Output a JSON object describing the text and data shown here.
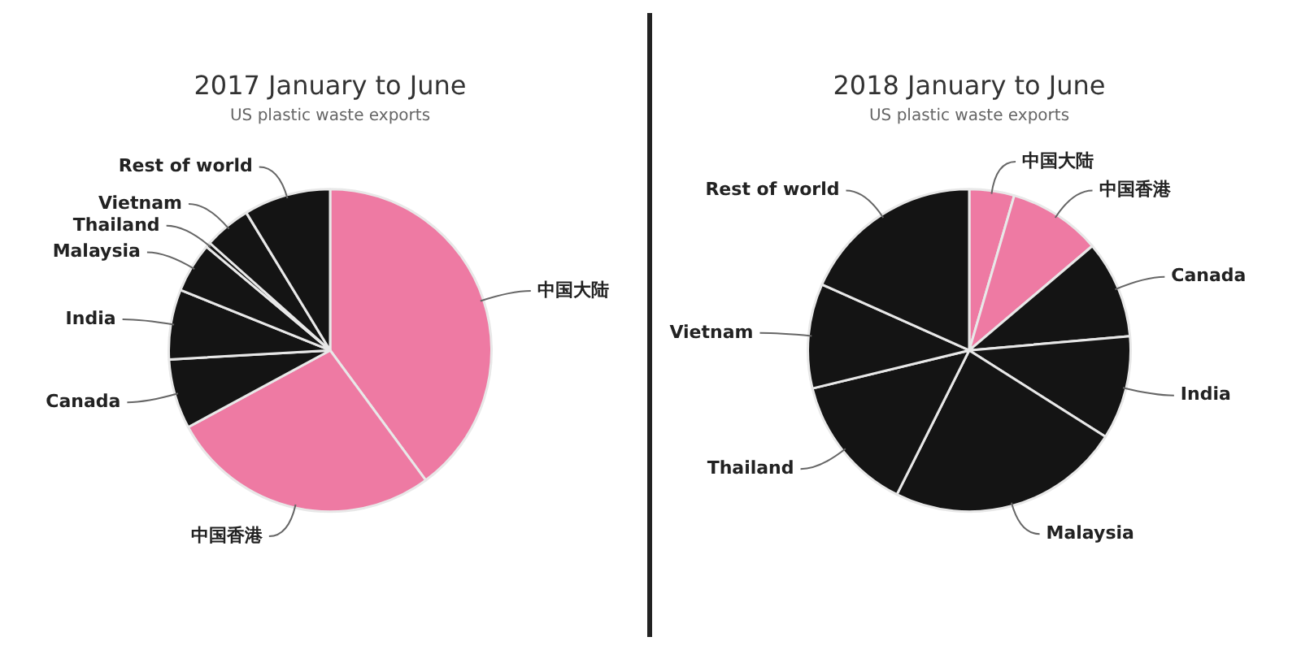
{
  "chart_data": [
    {
      "type": "pie",
      "title": "2017 January to June",
      "subtitle": "US plastic waste exports",
      "categories": [
        "中国大陆",
        "中国香港",
        "Canada",
        "India",
        "Malaysia",
        "Thailand",
        "Vietnam",
        "Rest of world"
      ],
      "values": [
        39.9,
        27.2,
        7.0,
        7.0,
        5.0,
        0.5,
        4.7,
        8.7
      ],
      "colors": [
        "#ee7aa3",
        "#ee7aa3",
        "#141414",
        "#141414",
        "#141414",
        "#141414",
        "#141414",
        "#141414"
      ]
    },
    {
      "type": "pie",
      "title": "2018 January to June",
      "subtitle": "US plastic waste exports",
      "categories": [
        "中国大陆",
        "中国香港",
        "Canada",
        "India",
        "Malaysia",
        "Thailand",
        "Vietnam",
        "Rest of world"
      ],
      "values": [
        4.5,
        9.3,
        9.8,
        10.4,
        23.4,
        13.8,
        10.5,
        18.3
      ],
      "colors": [
        "#ee7aa3",
        "#ee7aa3",
        "#141414",
        "#141414",
        "#141414",
        "#141414",
        "#141414",
        "#141414"
      ]
    }
  ]
}
